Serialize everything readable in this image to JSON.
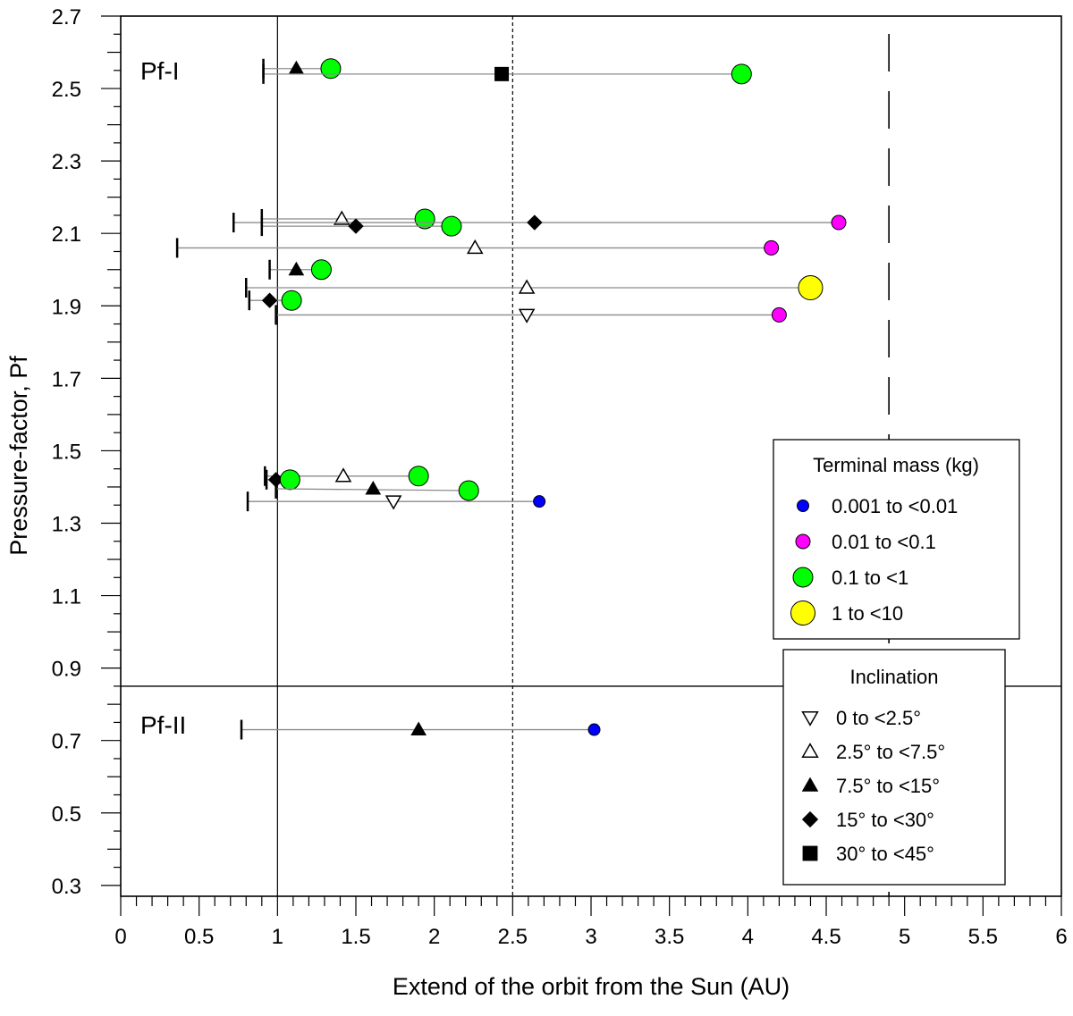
{
  "chart_data": {
    "type": "scatter",
    "xlabel": "Extend of the orbit from the Sun (AU)",
    "ylabel": "Pressure-factor, Pf",
    "xlim": [
      0,
      6
    ],
    "ylim": [
      0.27,
      2.7
    ],
    "x_ticks": [
      "0",
      "0.5",
      "1",
      "1.5",
      "2",
      "2.5",
      "3",
      "3.5",
      "4",
      "4.5",
      "5",
      "5.5",
      "6"
    ],
    "y_ticks": [
      "0.3",
      "0.5",
      "0.7",
      "0.9",
      "1.1",
      "1.3",
      "1.5",
      "1.7",
      "1.9",
      "2.1",
      "2.3",
      "2.5",
      "2.7"
    ],
    "reference_lines": {
      "earth_orbit_x": 1.0,
      "dotted_x": 2.5,
      "long_dash_x": 4.9,
      "region_divider_y": 0.85
    },
    "regions": [
      {
        "label": "Pf-I"
      },
      {
        "label": "Pf-II"
      }
    ],
    "legend_mass": {
      "title": "Terminal mass (kg)",
      "items": [
        {
          "label": "0.001 to <0.01",
          "color": "#0000ff",
          "size": "small"
        },
        {
          "label": "0.01 to <0.1",
          "color": "#ff00ff",
          "size": "medium"
        },
        {
          "label": "0.1 to <1",
          "color": "#00ff00",
          "size": "large"
        },
        {
          "label": "1 to <10",
          "color": "#ffff00",
          "size": "xlarge"
        }
      ]
    },
    "legend_inclination": {
      "title": "Inclination",
      "items": [
        {
          "label": "0 to <2.5°",
          "marker": "triangle-down-open"
        },
        {
          "label": "2.5° to <7.5°",
          "marker": "triangle-up-open"
        },
        {
          "label": "7.5° to <15°",
          "marker": "triangle-up-filled"
        },
        {
          "label": "15° to <30°",
          "marker": "diamond-filled"
        },
        {
          "label": "30° to <45°",
          "marker": "square-filled"
        }
      ]
    },
    "series": [
      {
        "q": 0.91,
        "incl_x": 1.12,
        "incl_y": 2.555,
        "incl": "triangle-up-filled",
        "end_x": 1.34,
        "end_y": 2.555,
        "mass": "green"
      },
      {
        "q": 0.91,
        "incl_x": 2.43,
        "incl_y": 2.54,
        "incl": "square-filled",
        "end_x": 3.96,
        "end_y": 2.54,
        "mass": "green"
      },
      {
        "q": 0.9,
        "incl_x": 1.41,
        "incl_y": 2.14,
        "incl": "triangle-up-open",
        "end_x": 1.94,
        "end_y": 2.14,
        "mass": "green"
      },
      {
        "q": 0.72,
        "incl_x": 2.64,
        "incl_y": 2.13,
        "incl": "diamond-filled",
        "end_x": 4.58,
        "end_y": 2.13,
        "mass": "magenta"
      },
      {
        "q": 0.9,
        "incl_x": 1.5,
        "incl_y": 2.12,
        "incl": "diamond-filled",
        "end_x": 2.11,
        "end_y": 2.12,
        "mass": "green"
      },
      {
        "q": 0.36,
        "incl_x": 2.26,
        "incl_y": 2.06,
        "incl": "triangle-up-open",
        "end_x": 4.15,
        "end_y": 2.06,
        "mass": "magenta"
      },
      {
        "q": 0.95,
        "incl_x": 1.12,
        "incl_y": 2.0,
        "incl": "triangle-up-filled",
        "end_x": 1.28,
        "end_y": 2.0,
        "mass": "green"
      },
      {
        "q": 0.8,
        "incl_x": 2.59,
        "incl_y": 1.95,
        "incl": "triangle-up-open",
        "end_x": 4.4,
        "end_y": 1.95,
        "mass": "yellow"
      },
      {
        "q": 0.82,
        "incl_x": 0.95,
        "incl_y": 1.915,
        "incl": "diamond-filled",
        "end_x": 1.09,
        "end_y": 1.915,
        "mass": "green"
      },
      {
        "q": 0.99,
        "incl_x": 2.59,
        "incl_y": 1.875,
        "incl": "triangle-down-open",
        "end_x": 4.2,
        "end_y": 1.875,
        "mass": "magenta"
      },
      {
        "q": 0.92,
        "incl_x": 1.42,
        "incl_y": 1.43,
        "incl": "triangle-up-open",
        "end_x": 1.9,
        "end_y": 1.43,
        "mass": "green"
      },
      {
        "q": 0.93,
        "incl_x": 0.99,
        "incl_y": 1.42,
        "incl": "diamond-filled",
        "end_x": 1.08,
        "end_y": 1.42,
        "mass": "green"
      },
      {
        "q": 0.99,
        "incl_x": 1.61,
        "incl_y": 1.395,
        "incl": "triangle-up-filled",
        "end_x": 2.22,
        "end_y": 1.39,
        "mass": "green"
      },
      {
        "q": 0.81,
        "incl_x": 1.74,
        "incl_y": 1.36,
        "incl": "triangle-down-open",
        "end_x": 2.67,
        "end_y": 1.36,
        "mass": "blue"
      },
      {
        "q": 0.77,
        "incl_x": 1.9,
        "incl_y": 0.73,
        "incl": "triangle-up-filled",
        "end_x": 3.02,
        "end_y": 0.73,
        "mass": "blue"
      }
    ]
  }
}
